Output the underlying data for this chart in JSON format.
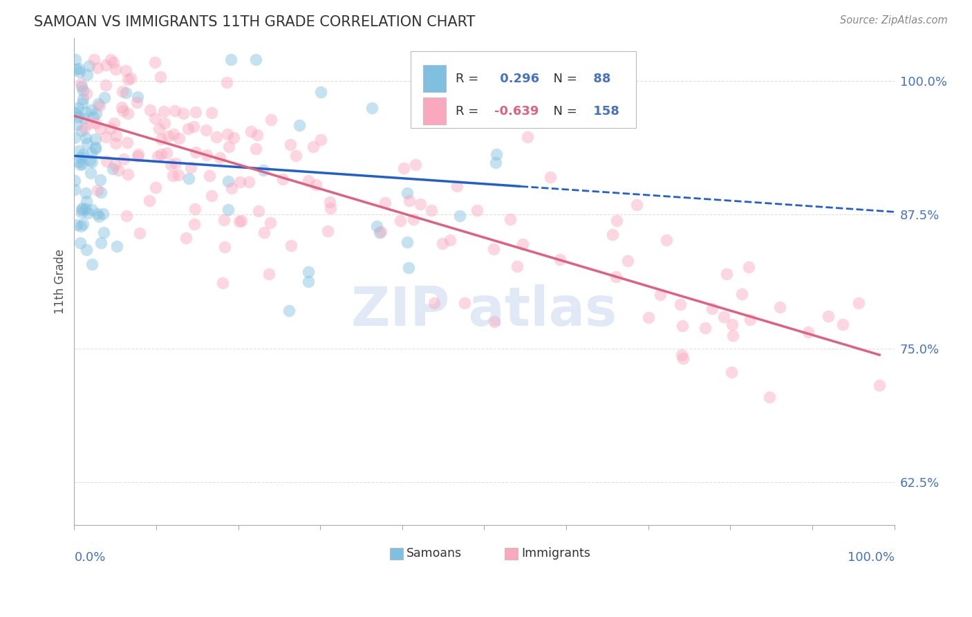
{
  "title": "SAMOAN VS IMMIGRANTS 11TH GRADE CORRELATION CHART",
  "source": "Source: ZipAtlas.com",
  "ylabel": "11th Grade",
  "ytick_labels": [
    "62.5%",
    "75.0%",
    "87.5%",
    "100.0%"
  ],
  "ytick_values": [
    0.625,
    0.75,
    0.875,
    1.0
  ],
  "xrange": [
    0.0,
    1.0
  ],
  "yrange": [
    0.585,
    1.04
  ],
  "samoan_color": "#7fbfdf",
  "immigrant_color": "#f9a8be",
  "samoan_R": 0.296,
  "samoan_N": 88,
  "immigrant_R": -0.639,
  "immigrant_N": 158,
  "legend_label_samoan": "Samoans",
  "legend_label_immigrant": "Immigrants",
  "background_color": "#ffffff",
  "grid_color": "#cccccc",
  "title_color": "#333333",
  "axis_label_color": "#4472c4",
  "ylabel_color": "#555555",
  "trend_blue": "#2060cc",
  "trend_pink": "#e06080"
}
